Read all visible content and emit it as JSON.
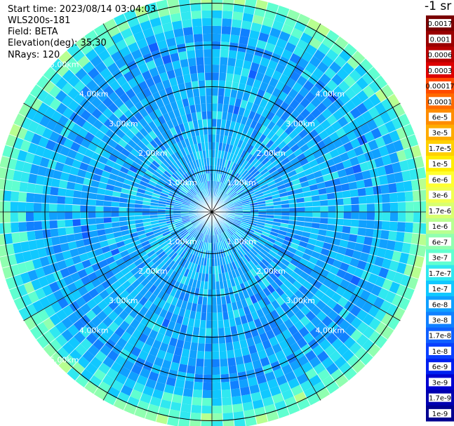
{
  "header": {
    "start_time": "Start time: 2023/08/14 03:04:03",
    "instrument": "WLS200s-181",
    "field": "Field: BETA",
    "elevation": "Elevation(deg): 35.30",
    "nrays": "NRays: 120"
  },
  "colorbar": {
    "unit_label": "-1 sr",
    "labels": [
      "0.0017",
      "0.001",
      "0.0006",
      "0.0003",
      "0.00017",
      "0.0001",
      "6e-5",
      "3e-5",
      "1.7e-5",
      "1e-5",
      "6e-6",
      "3e-6",
      "1.7e-6",
      "1e-6",
      "6e-7",
      "3e-7",
      "1.7e-7",
      "1e-7",
      "6e-8",
      "3e-8",
      "1.7e-8",
      "1e-8",
      "6e-9",
      "3e-9",
      "1.7e-9",
      "1e-9"
    ],
    "colors": [
      "#7a0000",
      "#990000",
      "#b80000",
      "#dd0000",
      "#ff4a00",
      "#ff6a00",
      "#ff8c00",
      "#ffac00",
      "#ffd000",
      "#ffee00",
      "#ffff30",
      "#f0ff50",
      "#d8ff70",
      "#b8ff90",
      "#90ffb0",
      "#60ffd0",
      "#30e8f0",
      "#10c8ff",
      "#10a0ff",
      "#1080ff",
      "#1060ff",
      "#0a40ff",
      "#0020f0",
      "#0000d0",
      "#0000b0",
      "#000090"
    ]
  },
  "chart_data": {
    "type": "heatmap",
    "projection": "polar PPI",
    "field": "BETA",
    "range_rings_km": [
      1,
      2,
      3,
      4,
      5
    ],
    "range_labels": [
      "1.00km",
      "2.00km",
      "3.00km",
      "4.00km",
      "5.00km"
    ],
    "max_range_km": 5.2,
    "nrays": 120,
    "spokes_deg": [
      0,
      30,
      60,
      90,
      120,
      150,
      180,
      210,
      240,
      270,
      300,
      330
    ],
    "typical_value_range": [
      "1e-8",
      "1e-7"
    ],
    "edge_value_range": [
      "1.7e-7",
      "1.7e-6"
    ],
    "grid": true
  }
}
